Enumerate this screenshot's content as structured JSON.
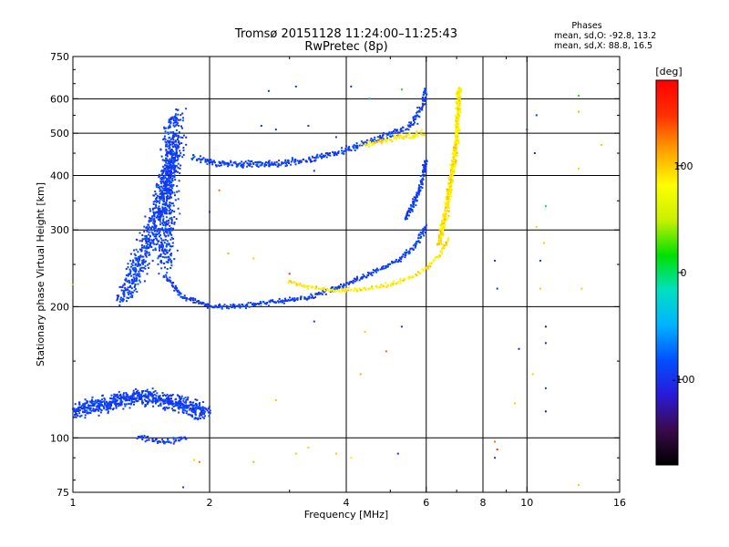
{
  "chart_data": {
    "type": "scatter",
    "title": "Tromsø 20151128 11:24:00–11:25:43",
    "subtitle": "RwPretec (8p)",
    "xlabel": "Frequency [MHz]",
    "ylabel": "Stationary phase Virtual Height [km]",
    "x_scale": "log",
    "y_scale": "log",
    "xlim": [
      1,
      16
    ],
    "ylim": [
      75,
      750
    ],
    "x_major_ticks": [
      1,
      2,
      4,
      6,
      8,
      10,
      16
    ],
    "x_tick_labels": [
      "1",
      "2",
      "4",
      "6",
      "8",
      "10",
      "16"
    ],
    "x_minor_ticks": [
      3,
      5,
      7,
      9
    ],
    "y_major_ticks": [
      75,
      100,
      200,
      300,
      400,
      500,
      600,
      750
    ],
    "y_tick_labels": [
      "75",
      "100",
      "200",
      "300",
      "400",
      "500",
      "600",
      "750"
    ],
    "y_minor_ticks": [
      80,
      90,
      150,
      250,
      350,
      450,
      550,
      650,
      700
    ],
    "grid": true,
    "colorbar": {
      "label": "[deg]",
      "range": [
        -180,
        180
      ],
      "ticks": [
        100,
        0,
        -100
      ],
      "tick_labels": [
        "100",
        "0",
        "-100"
      ],
      "colors": [
        "#000000",
        "#3a0a4a",
        "#2a1ad8",
        "#0050ff",
        "#00b4ff",
        "#00e0c0",
        "#00e000",
        "#c8f000",
        "#ffff00",
        "#ffa000",
        "#ff3000",
        "#ff0000"
      ]
    },
    "phases_legend": {
      "title": "Phases",
      "line_o": "mean, sd,O:  -92.8, 13.2",
      "line_x": "mean, sd,X:  88.8, 16.5"
    },
    "traces": [
      {
        "mode": "O",
        "phase": -92.8,
        "spread": 13.2,
        "jitter": 0.015,
        "x": [
          1.6,
          1.65,
          1.75,
          1.9,
          2.0,
          2.1,
          2.4,
          2.8,
          3.3,
          3.7,
          4.0,
          4.4,
          4.8,
          5.2,
          5.5,
          5.8,
          6.0
        ],
        "y": [
          235,
          225,
          210,
          205,
          201,
          200,
          201,
          205,
          210,
          218,
          225,
          235,
          245,
          255,
          268,
          285,
          310
        ],
        "n": 5
      },
      {
        "mode": "O",
        "phase": -92.8,
        "spread": 13.2,
        "jitter": 0.012,
        "x": [
          5.4,
          5.6,
          5.8,
          5.9,
          6.0
        ],
        "y": [
          320,
          340,
          370,
          400,
          440
        ],
        "n": 8
      },
      {
        "mode": "X",
        "phase": 88.8,
        "spread": 16.5,
        "jitter": 0.012,
        "x": [
          3.0,
          3.3,
          3.7,
          4.0,
          4.5,
          5.0,
          5.5,
          6.0,
          6.4,
          6.8
        ],
        "y": [
          228,
          222,
          218,
          218,
          220,
          225,
          232,
          245,
          262,
          290
        ],
        "n": 4
      },
      {
        "mode": "X",
        "phase": 88.8,
        "spread": 16.5,
        "jitter": 0.015,
        "x": [
          6.4,
          6.6,
          6.8,
          7.0,
          7.05,
          7.1
        ],
        "y": [
          280,
          320,
          390,
          480,
          560,
          640
        ],
        "n": 12
      },
      {
        "mode": "O",
        "phase": -92.8,
        "spread": 13.2,
        "jitter": 0.02,
        "x": [
          1.85,
          2.0,
          2.3,
          2.8,
          3.3,
          3.8,
          4.3,
          4.8,
          5.2,
          5.6,
          5.9,
          6.0
        ],
        "y": [
          440,
          428,
          425,
          425,
          435,
          450,
          470,
          490,
          505,
          525,
          580,
          640
        ],
        "n": 6
      },
      {
        "mode": "X",
        "phase": 88.8,
        "spread": 16.5,
        "jitter": 0.02,
        "x": [
          4.4,
          4.8,
          5.2,
          5.6,
          6.0
        ],
        "y": [
          470,
          480,
          490,
          495,
          500
        ],
        "n": 5
      },
      {
        "mode": "O",
        "phase": -92.8,
        "spread": 13.2,
        "jitter": 0.06,
        "x": [
          1.3,
          1.4,
          1.5,
          1.6,
          1.7
        ],
        "y": [
          210,
          250,
          300,
          380,
          480
        ],
        "n": 14
      },
      {
        "mode": "O",
        "phase": -92.8,
        "spread": 13.2,
        "jitter": 0.06,
        "x": [
          1.6,
          1.62,
          1.65,
          1.7
        ],
        "y": [
          250,
          350,
          450,
          560
        ],
        "n": 12
      },
      {
        "mode": "O",
        "phase": -92.8,
        "spread": 13.2,
        "jitter": 0.05,
        "x": [
          1.0,
          1.2,
          1.4,
          1.6,
          1.8,
          2.0
        ],
        "y": [
          115,
          120,
          125,
          122,
          118,
          112
        ],
        "n": 20
      },
      {
        "mode": "O",
        "phase": -92.8,
        "spread": 13.2,
        "jitter": 0.02,
        "x": [
          1.4,
          1.6,
          1.8
        ],
        "y": [
          100,
          98,
          100
        ],
        "n": 5
      }
    ],
    "sparse_points": [
      {
        "x": 2.7,
        "y": 625,
        "phase": -100
      },
      {
        "x": 3.1,
        "y": 640,
        "phase": -100
      },
      {
        "x": 4.1,
        "y": 640,
        "phase": -100
      },
      {
        "x": 5.3,
        "y": 630,
        "phase": 20
      },
      {
        "x": 4.5,
        "y": 600,
        "phase": -60
      },
      {
        "x": 10.5,
        "y": 550,
        "phase": -100
      },
      {
        "x": 13.0,
        "y": 610,
        "phase": 20
      },
      {
        "x": 13.0,
        "y": 560,
        "phase": 40
      },
      {
        "x": 10.0,
        "y": 510,
        "phase": -100
      },
      {
        "x": 14.6,
        "y": 470,
        "phase": 100
      },
      {
        "x": 10.4,
        "y": 450,
        "phase": -110
      },
      {
        "x": 13.0,
        "y": 415,
        "phase": 100
      },
      {
        "x": 11.0,
        "y": 340,
        "phase": 0
      },
      {
        "x": 10.5,
        "y": 305,
        "phase": 100
      },
      {
        "x": 10.9,
        "y": 280,
        "phase": 100
      },
      {
        "x": 8.5,
        "y": 255,
        "phase": -100
      },
      {
        "x": 10.7,
        "y": 255,
        "phase": -100
      },
      {
        "x": 8.6,
        "y": 220,
        "phase": -100
      },
      {
        "x": 10.7,
        "y": 220,
        "phase": 100
      },
      {
        "x": 13.2,
        "y": 220,
        "phase": 100
      },
      {
        "x": 11.0,
        "y": 180,
        "phase": -130
      },
      {
        "x": 11.0,
        "y": 165,
        "phase": -110
      },
      {
        "x": 9.6,
        "y": 160,
        "phase": -120
      },
      {
        "x": 10.3,
        "y": 140,
        "phase": 100
      },
      {
        "x": 11.0,
        "y": 130,
        "phase": -100
      },
      {
        "x": 9.4,
        "y": 120,
        "phase": 100
      },
      {
        "x": 11.0,
        "y": 115,
        "phase": -120
      },
      {
        "x": 8.5,
        "y": 98,
        "phase": 130
      },
      {
        "x": 8.6,
        "y": 94,
        "phase": 150
      },
      {
        "x": 8.5,
        "y": 90,
        "phase": -100
      },
      {
        "x": 13.0,
        "y": 78,
        "phase": 100
      },
      {
        "x": 4.3,
        "y": 140,
        "phase": 110
      },
      {
        "x": 4.4,
        "y": 175,
        "phase": 100
      },
      {
        "x": 4.9,
        "y": 158,
        "phase": 130
      },
      {
        "x": 5.3,
        "y": 180,
        "phase": -100
      },
      {
        "x": 3.4,
        "y": 185,
        "phase": -100
      },
      {
        "x": 2.5,
        "y": 88,
        "phase": 40
      },
      {
        "x": 3.1,
        "y": 92,
        "phase": 100
      },
      {
        "x": 3.3,
        "y": 95,
        "phase": 100
      },
      {
        "x": 3.8,
        "y": 92,
        "phase": 100
      },
      {
        "x": 5.2,
        "y": 92,
        "phase": -100
      },
      {
        "x": 4.1,
        "y": 90,
        "phase": 90
      },
      {
        "x": 2.8,
        "y": 122,
        "phase": 100
      },
      {
        "x": 3.0,
        "y": 238,
        "phase": 150
      },
      {
        "x": 2.2,
        "y": 265,
        "phase": 40
      },
      {
        "x": 2.5,
        "y": 258,
        "phase": 100
      },
      {
        "x": 1.9,
        "y": 88,
        "phase": 130
      },
      {
        "x": 1.85,
        "y": 89,
        "phase": 100
      },
      {
        "x": 1.75,
        "y": 77,
        "phase": -100
      },
      {
        "x": 1.0,
        "y": 225,
        "phase": 40
      },
      {
        "x": 2.1,
        "y": 370,
        "phase": 130
      },
      {
        "x": 2.0,
        "y": 330,
        "phase": -100
      },
      {
        "x": 3.3,
        "y": 520,
        "phase": -100
      },
      {
        "x": 3.8,
        "y": 490,
        "phase": -100
      },
      {
        "x": 2.6,
        "y": 520,
        "phase": -100
      },
      {
        "x": 2.8,
        "y": 510,
        "phase": -100
      },
      {
        "x": 3.4,
        "y": 410,
        "phase": -100
      }
    ]
  }
}
